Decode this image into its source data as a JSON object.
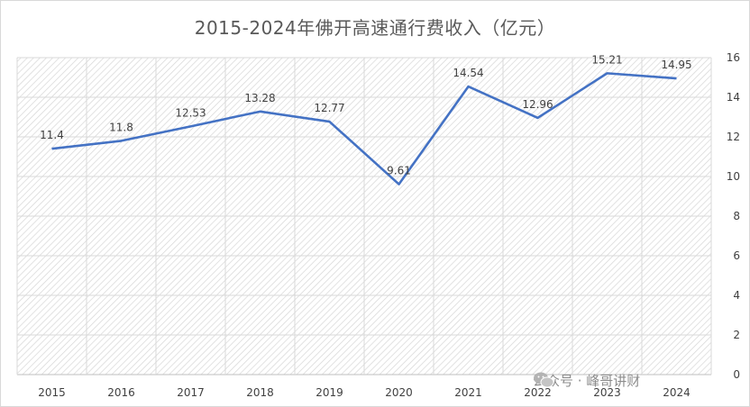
{
  "chart_data": {
    "type": "line",
    "title": "2015-2024年佛开高速通行费收入（亿元）",
    "categories": [
      "2015",
      "2016",
      "2017",
      "2018",
      "2019",
      "2020",
      "2021",
      "2022",
      "2023",
      "2024"
    ],
    "series": [
      {
        "values": [
          11.4,
          11.8,
          12.53,
          13.28,
          12.77,
          9.61,
          14.54,
          12.96,
          15.21,
          14.95
        ],
        "labels": [
          "11.4",
          "11.8",
          "12.53",
          "13.28",
          "12.77",
          "9.61",
          "14.54",
          "12.96",
          "15.21",
          "14.95"
        ]
      }
    ],
    "ylim": [
      0,
      16
    ],
    "yticks": [
      0,
      2,
      4,
      6,
      8,
      10,
      12,
      14,
      16
    ],
    "y_axis_side": "right",
    "grid": true,
    "plot_fill": "diagonal-hatch",
    "line_color": "#4472c4"
  },
  "watermark": {
    "icon": "wechat-icon",
    "text": "公众号 · 峰哥讲财"
  }
}
